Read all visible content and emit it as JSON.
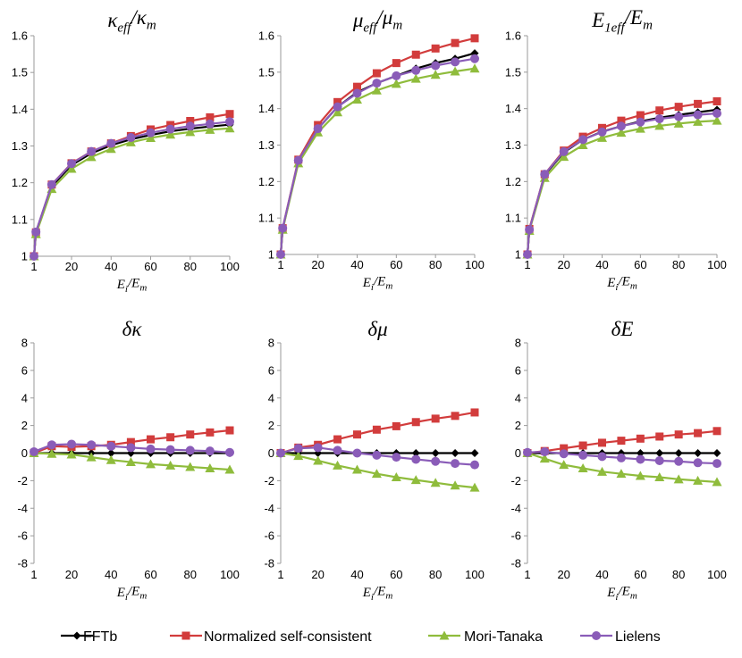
{
  "series_styles": [
    {
      "name": "FFTb",
      "color": "#000000",
      "marker": "diamond"
    },
    {
      "name": "Normalized self-consistent",
      "color": "#d23c3c",
      "marker": "square"
    },
    {
      "name": "Mori-Tanaka",
      "color": "#8fbc3c",
      "marker": "triangle"
    },
    {
      "name": "Lielens",
      "color": "#8a5cb8",
      "marker": "circle"
    }
  ],
  "legend": {
    "labels": [
      "FFTb",
      "Normalized self-consistent",
      "Mori-Tanaka",
      "Lielens"
    ]
  },
  "chart_data": [
    {
      "type": "line",
      "title": {
        "base": "κ",
        "sub": "eff",
        "sep": "/",
        "base2": "κ",
        "sub2": "m"
      },
      "xlabel": {
        "base": "E",
        "sub": "i",
        "sep": "/",
        "base2": "E",
        "sub2": "m"
      },
      "ylabel": "",
      "xticks": [
        1,
        20,
        40,
        60,
        80,
        100
      ],
      "xtick_labels": [
        "1",
        "20",
        "40",
        "60",
        "80",
        "100"
      ],
      "xlim": [
        1,
        100
      ],
      "ylim": [
        1,
        1.6
      ],
      "yticks": [
        1,
        1.1,
        1.2,
        1.3,
        1.4,
        1.5,
        1.6
      ],
      "ytick_labels": [
        "1",
        "1.1",
        "1.2",
        "1.3",
        "1.4",
        "1.5",
        "1.6"
      ],
      "x": [
        1,
        2,
        10,
        20,
        30,
        40,
        50,
        60,
        70,
        80,
        90,
        100
      ],
      "series": [
        {
          "name": "FFTb",
          "values": [
            1.0,
            1.065,
            1.19,
            1.248,
            1.28,
            1.302,
            1.318,
            1.33,
            1.34,
            1.347,
            1.353,
            1.358
          ]
        },
        {
          "name": "Normalized self-consistent",
          "values": [
            1.0,
            1.065,
            1.195,
            1.253,
            1.285,
            1.307,
            1.327,
            1.345,
            1.357,
            1.368,
            1.378,
            1.387
          ]
        },
        {
          "name": "Mori-Tanaka",
          "values": [
            1.0,
            1.06,
            1.183,
            1.238,
            1.27,
            1.292,
            1.31,
            1.322,
            1.331,
            1.338,
            1.344,
            1.348
          ]
        },
        {
          "name": "Lielens",
          "values": [
            1.0,
            1.066,
            1.195,
            1.252,
            1.285,
            1.307,
            1.323,
            1.336,
            1.346,
            1.354,
            1.36,
            1.366
          ]
        }
      ]
    },
    {
      "type": "line",
      "title": {
        "base": "μ",
        "sub": "eff",
        "sep": "/",
        "base2": "μ",
        "sub2": "m"
      },
      "xlabel": {
        "base": "E",
        "sub": "i",
        "sep": "/",
        "base2": "E",
        "sub2": "m"
      },
      "ylabel": "",
      "xticks": [
        1,
        20,
        40,
        60,
        80,
        100
      ],
      "xtick_labels": [
        "1",
        "20",
        "40",
        "60",
        "80",
        "100"
      ],
      "xlim": [
        1,
        100
      ],
      "ylim": [
        1,
        1.6
      ],
      "yticks": [
        1,
        1.1,
        1.2,
        1.3,
        1.4,
        1.5,
        1.6
      ],
      "ytick_labels": [
        "1",
        "1.1",
        "1.2",
        "1.3",
        "1.4",
        "1.5",
        "1.6"
      ],
      "x": [
        1,
        2,
        10,
        20,
        30,
        40,
        50,
        60,
        70,
        80,
        90,
        100
      ],
      "series": [
        {
          "name": "FFTb",
          "values": [
            1.0,
            1.07,
            1.255,
            1.345,
            1.405,
            1.445,
            1.47,
            1.49,
            1.51,
            1.525,
            1.537,
            1.552
          ]
        },
        {
          "name": "Normalized self-consistent",
          "values": [
            1.0,
            1.072,
            1.26,
            1.355,
            1.418,
            1.46,
            1.497,
            1.525,
            1.548,
            1.565,
            1.58,
            1.593
          ]
        },
        {
          "name": "Mori-Tanaka",
          "values": [
            1.0,
            1.068,
            1.25,
            1.335,
            1.39,
            1.425,
            1.45,
            1.468,
            1.482,
            1.493,
            1.502,
            1.51
          ]
        },
        {
          "name": "Lielens",
          "values": [
            1.0,
            1.072,
            1.258,
            1.345,
            1.405,
            1.442,
            1.47,
            1.49,
            1.505,
            1.518,
            1.528,
            1.537
          ]
        }
      ]
    },
    {
      "type": "line",
      "title": {
        "base": "E",
        "sub": "1eff",
        "sep": "/",
        "base2": "E",
        "sub2": "m"
      },
      "xlabel": {
        "base": "E",
        "sub": "i",
        "sep": "/",
        "base2": "E",
        "sub2": "m"
      },
      "ylabel": "",
      "xticks": [
        1,
        20,
        40,
        60,
        80,
        100
      ],
      "xtick_labels": [
        "1",
        "20",
        "40",
        "60",
        "80",
        "100"
      ],
      "xlim": [
        1,
        100
      ],
      "ylim": [
        1,
        1.6
      ],
      "yticks": [
        1,
        1.1,
        1.2,
        1.3,
        1.4,
        1.5,
        1.6
      ],
      "ytick_labels": [
        "1",
        "1.1",
        "1.2",
        "1.3",
        "1.4",
        "1.5",
        "1.6"
      ],
      "x": [
        1,
        2,
        10,
        20,
        30,
        40,
        50,
        60,
        70,
        80,
        90,
        100
      ],
      "series": [
        {
          "name": "FFTb",
          "values": [
            1.0,
            1.068,
            1.218,
            1.28,
            1.315,
            1.337,
            1.352,
            1.365,
            1.375,
            1.383,
            1.39,
            1.397
          ]
        },
        {
          "name": "Normalized self-consistent",
          "values": [
            1.0,
            1.07,
            1.22,
            1.285,
            1.323,
            1.347,
            1.367,
            1.382,
            1.395,
            1.405,
            1.413,
            1.42
          ]
        },
        {
          "name": "Mori-Tanaka",
          "values": [
            1.0,
            1.065,
            1.21,
            1.268,
            1.3,
            1.32,
            1.334,
            1.345,
            1.353,
            1.359,
            1.364,
            1.367
          ]
        },
        {
          "name": "Lielens",
          "values": [
            1.0,
            1.068,
            1.22,
            1.282,
            1.315,
            1.336,
            1.352,
            1.363,
            1.372,
            1.378,
            1.383,
            1.387
          ]
        }
      ]
    },
    {
      "type": "line",
      "title": {
        "base": "δκ",
        "sub": "",
        "sep": "",
        "base2": "",
        "sub2": ""
      },
      "xlabel": {
        "base": "E",
        "sub": "i",
        "sep": "/",
        "base2": "E",
        "sub2": "m"
      },
      "ylabel": "",
      "xticks": [
        1,
        20,
        40,
        60,
        80,
        100
      ],
      "xtick_labels": [
        "1",
        "20",
        "40",
        "60",
        "80",
        "100"
      ],
      "xlim": [
        1,
        100
      ],
      "ylim": [
        -8,
        8
      ],
      "yticks": [
        -8,
        -6,
        -4,
        -2,
        0,
        2,
        4,
        6,
        8
      ],
      "ytick_labels": [
        "-8",
        "-6",
        "-4",
        "-2",
        "0",
        "2",
        "4",
        "6",
        "8"
      ],
      "x": [
        1,
        10,
        20,
        30,
        40,
        50,
        60,
        70,
        80,
        90,
        100
      ],
      "series": [
        {
          "name": "FFTb",
          "values": [
            0.0,
            0.0,
            0.0,
            0.0,
            0.0,
            0.0,
            0.0,
            0.0,
            0.0,
            0.0,
            0.0
          ]
        },
        {
          "name": "Normalized self-consistent",
          "values": [
            0.0,
            0.5,
            0.45,
            0.5,
            0.6,
            0.8,
            1.0,
            1.15,
            1.35,
            1.5,
            1.65
          ]
        },
        {
          "name": "Mori-Tanaka",
          "values": [
            0.0,
            -0.05,
            -0.1,
            -0.3,
            -0.5,
            -0.65,
            -0.8,
            -0.9,
            -1.0,
            -1.1,
            -1.2
          ]
        },
        {
          "name": "Lielens",
          "values": [
            0.1,
            0.6,
            0.65,
            0.6,
            0.5,
            0.4,
            0.3,
            0.25,
            0.2,
            0.15,
            0.05
          ]
        }
      ]
    },
    {
      "type": "line",
      "title": {
        "base": "δμ",
        "sub": "",
        "sep": "",
        "base2": "",
        "sub2": ""
      },
      "xlabel": {
        "base": "E",
        "sub": "i",
        "sep": "/",
        "base2": "E",
        "sub2": "m"
      },
      "ylabel": "",
      "xticks": [
        1,
        20,
        40,
        60,
        80,
        100
      ],
      "xtick_labels": [
        "1",
        "20",
        "40",
        "60",
        "80",
        "100"
      ],
      "xlim": [
        1,
        100
      ],
      "ylim": [
        -8,
        8
      ],
      "yticks": [
        -8,
        -6,
        -4,
        -2,
        0,
        2,
        4,
        6,
        8
      ],
      "ytick_labels": [
        "-8",
        "-6",
        "-4",
        "-2",
        "0",
        "2",
        "4",
        "6",
        "8"
      ],
      "x": [
        1,
        10,
        20,
        30,
        40,
        50,
        60,
        70,
        80,
        90,
        100
      ],
      "series": [
        {
          "name": "FFTb",
          "values": [
            0.0,
            0.0,
            0.0,
            0.0,
            0.0,
            0.0,
            0.0,
            0.0,
            0.0,
            0.0,
            0.0
          ]
        },
        {
          "name": "Normalized self-consistent",
          "values": [
            0.0,
            0.4,
            0.6,
            1.0,
            1.35,
            1.7,
            1.95,
            2.25,
            2.5,
            2.7,
            2.95
          ]
        },
        {
          "name": "Mori-Tanaka",
          "values": [
            0.0,
            -0.2,
            -0.55,
            -0.9,
            -1.2,
            -1.5,
            -1.75,
            -1.95,
            -2.15,
            -2.35,
            -2.5
          ]
        },
        {
          "name": "Lielens",
          "values": [
            0.0,
            0.35,
            0.4,
            0.2,
            0.0,
            -0.15,
            -0.3,
            -0.45,
            -0.6,
            -0.75,
            -0.85
          ]
        }
      ]
    },
    {
      "type": "line",
      "title": {
        "base": "δE",
        "sub": "",
        "sep": "",
        "base2": "",
        "sub2": ""
      },
      "xlabel": {
        "base": "E",
        "sub": "i",
        "sep": "/",
        "base2": "E",
        "sub2": "m"
      },
      "ylabel": "",
      "xticks": [
        1,
        20,
        40,
        60,
        80,
        100
      ],
      "xtick_labels": [
        "1",
        "20",
        "40",
        "60",
        "80",
        "100"
      ],
      "xlim": [
        1,
        100
      ],
      "ylim": [
        -8,
        8
      ],
      "yticks": [
        -8,
        -6,
        -4,
        -2,
        0,
        2,
        4,
        6,
        8
      ],
      "ytick_labels": [
        "-8",
        "-6",
        "-4",
        "-2",
        "0",
        "2",
        "4",
        "6",
        "8"
      ],
      "x": [
        1,
        10,
        20,
        30,
        40,
        50,
        60,
        70,
        80,
        90,
        100
      ],
      "series": [
        {
          "name": "FFTb",
          "values": [
            0.0,
            0.0,
            0.0,
            0.0,
            0.0,
            0.0,
            0.0,
            0.0,
            0.0,
            0.0,
            0.0
          ]
        },
        {
          "name": "Normalized self-consistent",
          "values": [
            0.0,
            0.15,
            0.35,
            0.55,
            0.75,
            0.9,
            1.05,
            1.2,
            1.35,
            1.45,
            1.6
          ]
        },
        {
          "name": "Mori-Tanaka",
          "values": [
            0.0,
            -0.4,
            -0.85,
            -1.1,
            -1.35,
            -1.5,
            -1.65,
            -1.75,
            -1.9,
            -2.0,
            -2.1
          ]
        },
        {
          "name": "Lielens",
          "values": [
            0.05,
            0.1,
            -0.05,
            -0.15,
            -0.25,
            -0.35,
            -0.45,
            -0.55,
            -0.6,
            -0.7,
            -0.75
          ]
        }
      ]
    }
  ]
}
